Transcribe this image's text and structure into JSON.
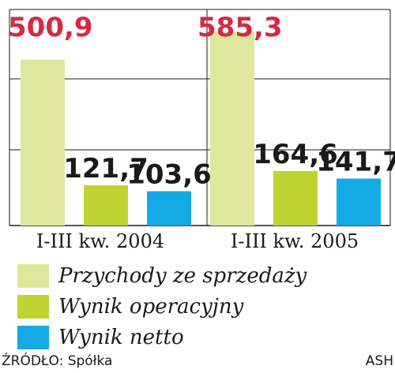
{
  "chart_data": {
    "type": "bar",
    "categories": [
      "I-III kw. 2004",
      "I-III kw. 2005"
    ],
    "series": [
      {
        "name": "Przychody ze sprzedaży",
        "values": [
          500.9,
          585.3
        ],
        "labels": [
          "500,9",
          "585,3"
        ],
        "color": "#dde89c",
        "label_color": "#d62947"
      },
      {
        "name": "Wynik operacyjny",
        "values": [
          121.7,
          164.6
        ],
        "labels": [
          "121,7",
          "164,6"
        ],
        "color": "#bfd430",
        "label_color": "#1a1a1a"
      },
      {
        "name": "Wynik netto",
        "values": [
          103.6,
          141.7
        ],
        "labels": [
          "103,6",
          "141,7"
        ],
        "color": "#14aae6",
        "label_color": "#1a1a1a"
      }
    ],
    "ylim": [
      0,
      585.3
    ],
    "grid": true
  },
  "footer": {
    "source": "ŹRÓDŁO: Spółka",
    "author": "ASH"
  }
}
